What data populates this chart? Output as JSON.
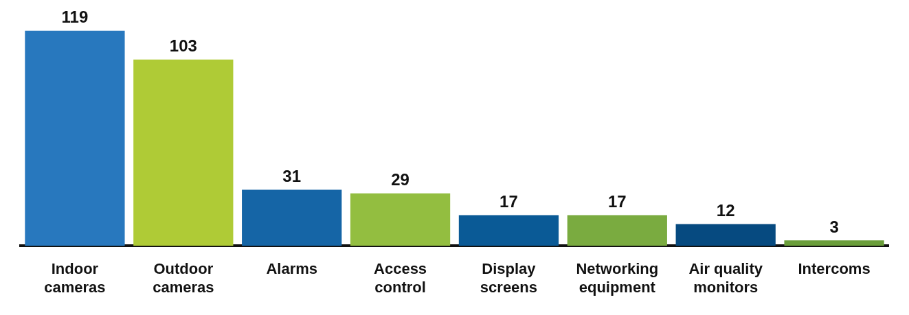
{
  "chart_data": {
    "type": "bar",
    "categories": [
      "Indoor cameras",
      "Outdoor cameras",
      "Alarms",
      "Access control",
      "Display screens",
      "Networking equipment",
      "Air quality monitors",
      "Intercoms"
    ],
    "values": [
      119,
      103,
      31,
      29,
      17,
      17,
      12,
      3
    ],
    "colors": [
      "#2878be",
      "#afcb36",
      "#1565a6",
      "#93be40",
      "#0a5a96",
      "#7aab40",
      "#064a80",
      "#6a9e3a"
    ],
    "data_labels": true,
    "grid": false,
    "legend": false
  }
}
